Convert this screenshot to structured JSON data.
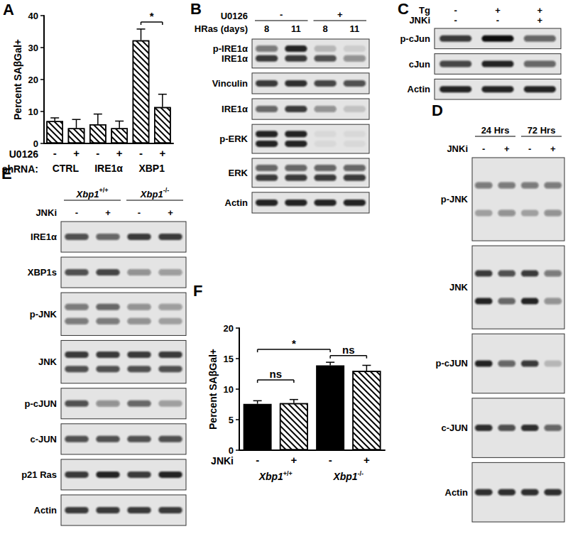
{
  "chart_data": [
    {
      "type": "bar",
      "label": "A",
      "y_label": "Percent SAβGal+",
      "categories": [
        "CTRL",
        "IRE1α",
        "XBP1"
      ],
      "treatment_label": "U0126",
      "group_label": "shRNA:",
      "series": [
        {
          "name": "-",
          "color": "#000000",
          "marker": "hatched",
          "values": [
            7.0,
            6.0,
            32.3
          ],
          "errors": [
            1.0,
            3.2,
            3.5
          ]
        },
        {
          "name": "+",
          "color": "#000000",
          "marker": "hatched",
          "values": [
            4.8,
            4.8,
            11.4
          ],
          "errors": [
            2.7,
            2.2,
            4.0
          ]
        }
      ],
      "ylim": [
        0,
        40
      ],
      "yticks": [
        0,
        10,
        20,
        30,
        40
      ],
      "brackets": [
        {
          "text": "*",
          "bars": [
            [
              2,
              0
            ],
            [
              2,
              1
            ]
          ],
          "y": 38
        }
      ]
    },
    {
      "type": "bar",
      "label": "F",
      "y_label": "Percent SAβGal+",
      "categories": [
        "Xbp1+/+",
        "Xbp1-/-"
      ],
      "treatment_label": "JNKi",
      "series": [
        {
          "name": "-",
          "color": "#000000",
          "marker": "solid",
          "values": [
            7.6,
            13.9
          ],
          "errors": [
            0.5,
            0.5
          ]
        },
        {
          "name": "+",
          "color": "#000000",
          "marker": "hatched",
          "values": [
            7.7,
            13.0
          ],
          "errors": [
            0.6,
            0.9
          ]
        }
      ],
      "ylim": [
        0,
        20
      ],
      "yticks": [
        0,
        5,
        10,
        15,
        20
      ],
      "brackets": [
        {
          "text": "ns",
          "bars": [
            [
              0,
              0
            ],
            [
              0,
              1
            ]
          ],
          "y": 11.5
        },
        {
          "text": "*",
          "bars": [
            [
              0,
              0
            ],
            [
              1,
              0
            ]
          ],
          "y": 16.5
        },
        {
          "text": "ns",
          "bars": [
            [
              1,
              0
            ],
            [
              1,
              1
            ]
          ],
          "y": 15.5
        }
      ]
    }
  ],
  "blots": [
    {
      "label": "B",
      "headers": [
        {
          "title": "U0126",
          "groups": [
            {
              "text": "-",
              "lanes": [
                0,
                1
              ]
            },
            {
              "text": "+",
              "lanes": [
                2,
                3
              ]
            }
          ]
        },
        {
          "title": "HRas (days)",
          "lanes": [
            "8",
            "11",
            "8",
            "11"
          ]
        }
      ],
      "rows": [
        {
          "names": [
            "p-IRE1α",
            "IRE1α"
          ],
          "bands": [
            [
              0.5,
              0.9,
              0.2,
              0.1
            ],
            [
              0.8,
              0.8,
              0.7,
              0.4
            ]
          ]
        },
        {
          "names": [
            "Vinculin"
          ],
          "bands": [
            [
              0.8,
              0.85,
              0.75,
              0.7
            ]
          ]
        },
        {
          "names": [
            "IRE1α"
          ],
          "bands": [
            [
              0.6,
              0.8,
              0.4,
              0.15
            ]
          ]
        },
        {
          "names": [
            "p-ERK"
          ],
          "bands": [
            [
              0.9,
              0.9,
              0.05,
              0.05
            ],
            [
              0.9,
              0.9,
              0.05,
              0.05
            ]
          ]
        },
        {
          "names": [
            "ERK"
          ],
          "bands": [
            [
              0.6,
              0.6,
              0.6,
              0.6
            ],
            [
              0.8,
              0.8,
              0.8,
              0.8
            ]
          ]
        },
        {
          "names": [
            "Actin"
          ],
          "bands": [
            [
              0.9,
              0.9,
              0.9,
              0.9
            ]
          ]
        }
      ]
    },
    {
      "label": "C",
      "headers": [
        {
          "title": "Tg",
          "lanes": [
            "-",
            "+",
            "+"
          ]
        },
        {
          "title": "JNKi",
          "lanes": [
            "-",
            "-",
            "+"
          ]
        }
      ],
      "rows": [
        {
          "names": [
            "p-cJun"
          ],
          "bands": [
            [
              0.8,
              1.0,
              0.6
            ]
          ]
        },
        {
          "names": [
            "cJun"
          ],
          "bands": [
            [
              0.75,
              0.9,
              0.6
            ]
          ]
        },
        {
          "names": [
            "Actin"
          ],
          "bands": [
            [
              0.9,
              0.9,
              0.9
            ]
          ]
        }
      ]
    },
    {
      "label": "D",
      "headers": [
        {
          "groups": [
            {
              "text": "24 Hrs",
              "lanes": [
                0,
                1
              ]
            },
            {
              "text": "72 Hrs",
              "lanes": [
                2,
                3
              ]
            }
          ]
        },
        {
          "title": "JNKi",
          "lanes": [
            "-",
            "+",
            "-",
            "+"
          ]
        }
      ],
      "rows": [
        {
          "names": [
            "p-JNK"
          ],
          "bands": [
            [
              0.5,
              0.5,
              0.5,
              0.5
            ],
            [
              0.3,
              0.4,
              0.3,
              0.4
            ]
          ]
        },
        {
          "names": [
            "JNK"
          ],
          "bands": [
            [
              0.8,
              0.7,
              0.8,
              0.5
            ],
            [
              0.9,
              0.6,
              0.9,
              0.4
            ]
          ]
        },
        {
          "names": [
            "p-cJUN"
          ],
          "bands": [
            [
              0.9,
              0.6,
              0.8,
              0.2
            ]
          ]
        },
        {
          "names": [
            "c-JUN"
          ],
          "bands": [
            [
              0.85,
              0.7,
              0.85,
              0.6
            ]
          ]
        },
        {
          "names": [
            "Actin"
          ],
          "bands": [
            [
              0.85,
              0.85,
              0.85,
              0.85
            ]
          ]
        }
      ]
    },
    {
      "label": "E",
      "headers": [
        {
          "groups": [
            {
              "text": "Xbp1+/+",
              "lanes": [
                0,
                1
              ]
            },
            {
              "text": "Xbp1-/-",
              "lanes": [
                2,
                3
              ]
            }
          ]
        },
        {
          "title": "JNKi",
          "lanes": [
            "-",
            "+",
            "-",
            "+"
          ]
        }
      ],
      "rows": [
        {
          "names": [
            "IRE1α"
          ],
          "bands": [
            [
              0.7,
              0.6,
              0.8,
              0.8
            ]
          ]
        },
        {
          "names": [
            "XBP1s"
          ],
          "bands": [
            [
              0.7,
              0.75,
              0.4,
              0.35
            ]
          ]
        },
        {
          "names": [
            "p-JNK"
          ],
          "bands": [
            [
              0.5,
              0.6,
              0.4,
              0.35
            ],
            [
              0.5,
              0.5,
              0.4,
              0.3
            ]
          ]
        },
        {
          "names": [
            "JNK"
          ],
          "bands": [
            [
              0.8,
              0.8,
              0.8,
              0.8
            ],
            [
              0.7,
              0.7,
              0.7,
              0.7
            ]
          ]
        },
        {
          "names": [
            "p-cJUN"
          ],
          "bands": [
            [
              0.7,
              0.4,
              0.6,
              0.3
            ]
          ]
        },
        {
          "names": [
            "c-JUN"
          ],
          "bands": [
            [
              0.7,
              0.7,
              0.7,
              0.7
            ]
          ]
        },
        {
          "names": [
            "p21 Ras"
          ],
          "bands": [
            [
              0.8,
              0.9,
              0.8,
              0.9
            ]
          ]
        },
        {
          "names": [
            "Actin"
          ],
          "bands": [
            [
              0.8,
              0.8,
              0.8,
              0.8
            ]
          ]
        }
      ]
    }
  ]
}
